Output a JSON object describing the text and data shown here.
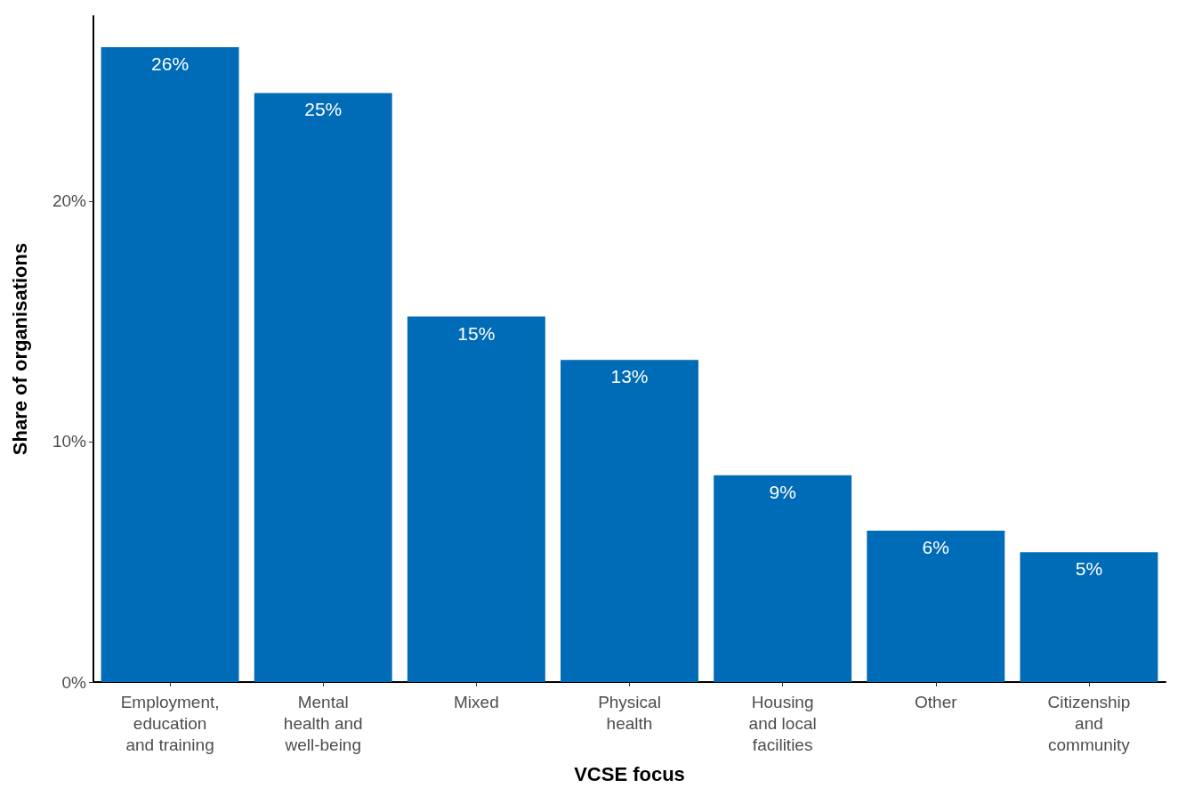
{
  "chart_data": {
    "type": "bar",
    "xlabel": "VCSE focus",
    "ylabel": "Share of organisations",
    "categories": [
      "Employment,\neducation\nand training",
      "Mental\nhealth and\nwell-being",
      "Mixed",
      "Physical\nhealth",
      "Housing\nand local\nfacilities",
      "Other",
      "Citizenship\nand\ncommunity"
    ],
    "values": [
      26.4,
      24.5,
      15.2,
      13.4,
      8.6,
      6.3,
      5.4
    ],
    "value_labels": [
      "26%",
      "25%",
      "15%",
      "13%",
      "9%",
      "6%",
      "5%"
    ],
    "color": "#006bb6",
    "ylim": [
      0,
      27.7
    ],
    "yticks": [
      {
        "value": 0,
        "label": "0%"
      },
      {
        "value": 10,
        "label": "10%"
      },
      {
        "value": 20,
        "label": "20%"
      }
    ],
    "grid": false
  }
}
